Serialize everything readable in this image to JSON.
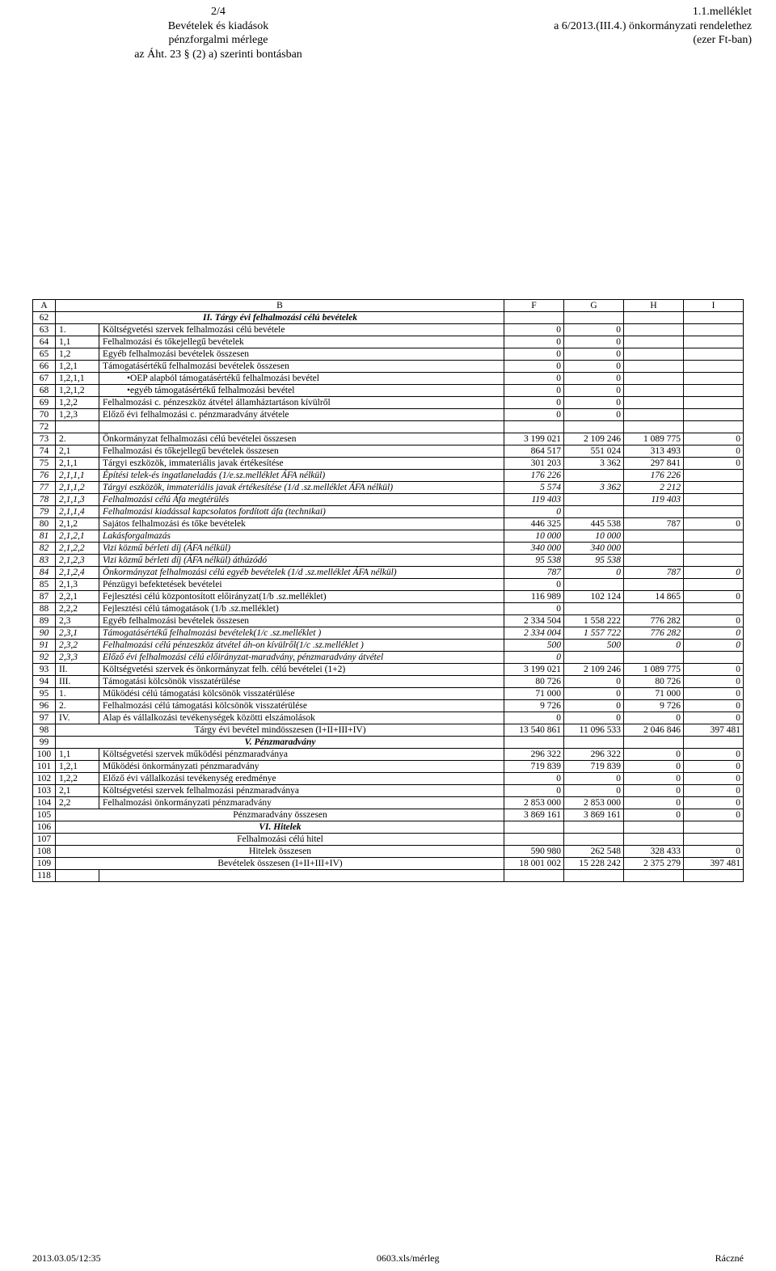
{
  "header_left": [
    "2/4",
    "Bevételek és kiadások",
    "pénzforgalmi mérlege",
    "az Áht. 23 § (2) a) szerinti bontásban"
  ],
  "header_right": [
    "1.1.melléklet",
    "a 6/2013.(III.4.) önkormányzati rendelethez",
    "(ezer Ft-ban)"
  ],
  "col_headers": [
    "A",
    "B",
    "F",
    "G",
    "H",
    "I"
  ],
  "rows": [
    {
      "n": "62",
      "code": "",
      "desc": "II. Tárgy évi felhalmozási  célú bevételek",
      "F": "",
      "G": "",
      "H": "",
      "I": "",
      "style": "section-title",
      "code_merge": true
    },
    {
      "n": "63",
      "code": "1.",
      "desc": "Költségvetési szervek felhalmozási célú bevétele",
      "F": "0",
      "G": "0",
      "H": "",
      "I": ""
    },
    {
      "n": "64",
      "code": "1,1",
      "desc": "Felhalmozási és tőkejellegű bevételek",
      "F": "0",
      "G": "0",
      "H": "",
      "I": ""
    },
    {
      "n": "65",
      "code": "1,2",
      "desc": "Egyéb felhalmozási bevételek összesen",
      "F": "0",
      "G": "0",
      "H": "",
      "I": ""
    },
    {
      "n": "66",
      "code": "1,2,1",
      "desc": "Támogatásértékű felhalmozási bevételek összesen",
      "F": "0",
      "G": "0",
      "H": "",
      "I": ""
    },
    {
      "n": "67",
      "code": "1,2,1,1",
      "desc": "•OEP alapból támogatásértékű felhalmozási bevétel",
      "F": "0",
      "G": "0",
      "H": "",
      "I": "",
      "indent": 2
    },
    {
      "n": "68",
      "code": "1,2,1,2",
      "desc": "•egyéb támogatásértékű felhalmozási bevétel",
      "F": "0",
      "G": "0",
      "H": "",
      "I": "",
      "indent": 2
    },
    {
      "n": "69",
      "code": "1,2,2",
      "desc": "Felhalmozási c. pénzeszköz átvétel államháztartáson kívülről",
      "F": "0",
      "G": "0",
      "H": "",
      "I": ""
    },
    {
      "n": "70",
      "code": "1,2,3",
      "desc": "Előző évi felhalmozási c. pénzmaradvány átvétele",
      "F": "0",
      "G": "0",
      "H": "",
      "I": ""
    },
    {
      "n": "72",
      "code": "",
      "desc": "",
      "F": "",
      "G": "",
      "H": "",
      "I": ""
    },
    {
      "n": "73",
      "code": "2.",
      "desc": "Önkormányzat  felhalmozási célú bevételei összesen",
      "F": "3 199 021",
      "G": "2 109 246",
      "H": "1 089 775",
      "I": "0"
    },
    {
      "n": "74",
      "code": "2,1",
      "desc": "Felhalmozási és tőkejellegű bevételek összesen",
      "F": "864 517",
      "G": "551 024",
      "H": "313 493",
      "I": "0"
    },
    {
      "n": "75",
      "code": "2,1,1",
      "desc": "Tárgyi eszközök, immateriális javak értékesítése",
      "F": "301 203",
      "G": "3 362",
      "H": "297 841",
      "I": "0"
    },
    {
      "n": "76",
      "code": "2,1,1,1",
      "desc": "Építési telek-és ingatlaneladás (1/e.sz.melléklet ÁFA nélkül)",
      "F": "176 226",
      "G": "",
      "H": "176 226",
      "I": "",
      "style": "ital"
    },
    {
      "n": "77",
      "code": "2,1,1,2",
      "desc": "Tárgyi eszközök, immateriális javak értékesítése (1/d .sz.melléklet ÁFA nélkül)",
      "F": "5 574",
      "G": "3 362",
      "H": "2 212",
      "I": "",
      "style": "ital"
    },
    {
      "n": "78",
      "code": "2,1,1,3",
      "desc": "Felhalmozási célú Áfa megtérülés",
      "F": "119 403",
      "G": "",
      "H": "119 403",
      "I": "",
      "style": "ital"
    },
    {
      "n": "79",
      "code": "2,1,1,4",
      "desc": "Felhalmozási kiadással kapcsolatos fordított áfa (technikai)",
      "F": "0",
      "G": "",
      "H": "",
      "I": "",
      "style": "ital"
    },
    {
      "n": "80",
      "code": "2,1,2",
      "desc": "Sajátos felhalmozási és tőke bevételek",
      "F": "446 325",
      "G": "445 538",
      "H": "787",
      "I": "0"
    },
    {
      "n": "81",
      "code": "2,1,2,1",
      "desc": "Lakásforgalmazás",
      "F": "10 000",
      "G": "10 000",
      "H": "",
      "I": "",
      "style": "ital"
    },
    {
      "n": "82",
      "code": "2,1,2,2",
      "desc": "Vizi közmű bérleti díj (ÁFA nélkül)",
      "F": "340 000",
      "G": "340 000",
      "H": "",
      "I": "",
      "style": "ital"
    },
    {
      "n": "83",
      "code": "2,1,2,3",
      "desc": "Vizi közmű bérleti díj (ÁFA nélkül) áthúzódó",
      "F": "95 538",
      "G": "95 538",
      "H": "",
      "I": "",
      "style": "ital"
    },
    {
      "n": "84",
      "code": "2,1,2,4",
      "desc": "Önkormányzat felhalmozási célú egyéb bevételek (1/d .sz.melléklet ÁFA nélkül)",
      "F": "787",
      "G": "0",
      "H": "787",
      "I": "0",
      "style": "ital"
    },
    {
      "n": "85",
      "code": "2,1,3",
      "desc": "Pénzügyi befektetések bevételei",
      "F": "0",
      "G": "",
      "H": "",
      "I": ""
    },
    {
      "n": "87",
      "code": "2,2,1",
      "desc": "Fejlesztési célú központosított előirányzat(1/b .sz.melléklet)",
      "F": "116 989",
      "G": "102 124",
      "H": "14 865",
      "I": "0"
    },
    {
      "n": "88",
      "code": "2,2,2",
      "desc": "Fejlesztési célú támogatások (1/b .sz.melléklet)",
      "F": "0",
      "G": "",
      "H": "",
      "I": ""
    },
    {
      "n": "89",
      "code": "2,3",
      "desc": "Egyéb felhalmozási bevételek összesen",
      "F": "2 334 504",
      "G": "1 558 222",
      "H": "776 282",
      "I": "0"
    },
    {
      "n": "90",
      "code": "2,3,1",
      "desc": "Támogatásértékű felhalmozási bevételek(1/c .sz.melléklet )",
      "F": "2 334 004",
      "G": "1 557 722",
      "H": "776 282",
      "I": "0",
      "style": "ital"
    },
    {
      "n": "91",
      "code": "2,3,2",
      "desc": "Felhalmozási célú pénzeszköz átvétel áh-on kívülről(1/c .sz.melléklet )",
      "F": "500",
      "G": "500",
      "H": "0",
      "I": "0",
      "style": "ital"
    },
    {
      "n": "92",
      "code": "2,3,3",
      "desc": "Előző évi felhalmozási célú előirányzat-maradvány, pénzmaradvány átvétel",
      "F": "0",
      "G": "",
      "H": "",
      "I": "",
      "style": "ital"
    },
    {
      "n": "93",
      "code": "II.",
      "desc": "Költségvetési szervek és önkormányzat felh. célú bevételei (1+2)",
      "F": "3 199 021",
      "G": "2 109 246",
      "H": "1 089 775",
      "I": "0"
    },
    {
      "n": "94",
      "code": "III.",
      "desc": "Támogatási kölcsönök visszatérülése",
      "F": "80 726",
      "G": "0",
      "H": "80 726",
      "I": "0"
    },
    {
      "n": "95",
      "code": "1.",
      "desc": "Működési célú támogatási kölcsönök visszatérülése",
      "F": "71 000",
      "G": "0",
      "H": "71 000",
      "I": "0"
    },
    {
      "n": "96",
      "code": "2.",
      "desc": "Felhalmozási célú támogatási kölcsönök visszatérülése",
      "F": "9 726",
      "G": "0",
      "H": "9 726",
      "I": "0"
    },
    {
      "n": "97",
      "code": "IV.",
      "desc": "Alap és vállalkozási tevékenységek közötti elszámolások",
      "F": "0",
      "G": "0",
      "H": "0",
      "I": "0"
    },
    {
      "n": "98",
      "code": "",
      "desc": "Tárgy évi bevétel mindösszesen (I+II+III+IV)",
      "F": "13 540 861",
      "G": "11 096 533",
      "H": "2 046 846",
      "I": "397 481",
      "desc_center": true,
      "code_merge": true
    },
    {
      "n": "99",
      "code": "",
      "desc": "V. Pénzmaradvány",
      "F": "",
      "G": "",
      "H": "",
      "I": "",
      "style": "section-title",
      "code_merge": true
    },
    {
      "n": "100",
      "code": "1,1",
      "desc": "Költségvetési szervek működési pénzmaradványa",
      "F": "296 322",
      "G": "296 322",
      "H": "0",
      "I": "0"
    },
    {
      "n": "101",
      "code": "1,2,1",
      "desc": "Működési önkormányzati pénzmaradvány",
      "F": "719 839",
      "G": "719 839",
      "H": "0",
      "I": "0"
    },
    {
      "n": "102",
      "code": "1,2,2",
      "desc": "Előző évi vállalkozási tevékenység eredménye",
      "F": "0",
      "G": "0",
      "H": "0",
      "I": "0"
    },
    {
      "n": "103",
      "code": "2,1",
      "desc": "Költségvetési szervek felhalmozási pénzmaradványa",
      "F": "0",
      "G": "0",
      "H": "0",
      "I": "0"
    },
    {
      "n": "104",
      "code": "2,2",
      "desc": "Felhalmozási önkormányzati pénzmaradvány",
      "F": "2 853 000",
      "G": "2 853 000",
      "H": "0",
      "I": "0"
    },
    {
      "n": "105",
      "code": "",
      "desc": "Pénzmaradvány összesen",
      "F": "3 869 161",
      "G": "3 869 161",
      "H": "0",
      "I": "0",
      "desc_center": true,
      "code_merge": true
    },
    {
      "n": "106",
      "code": "",
      "desc": "VI. Hitelek",
      "F": "",
      "G": "",
      "H": "",
      "I": "",
      "style": "section-title",
      "code_merge": true
    },
    {
      "n": "107",
      "code": "",
      "desc": "Felhalmozási célú hitel",
      "F": "",
      "G": "",
      "H": "",
      "I": "",
      "desc_center": true,
      "code_merge": true
    },
    {
      "n": "108",
      "code": "",
      "desc": "Hitelek összesen",
      "F": "590 980",
      "G": "262 548",
      "H": "328 433",
      "I": "0",
      "desc_center": true,
      "code_merge": true
    },
    {
      "n": "109",
      "code": "",
      "desc": "Bevételek összesen (I+II+III+IV)",
      "F": "18 001 002",
      "G": "15 228 242",
      "H": "2 375 279",
      "I": "397 481",
      "desc_center": true,
      "code_merge": true
    },
    {
      "n": "118",
      "code": "",
      "desc": "",
      "F": "",
      "G": "",
      "H": "",
      "I": ""
    }
  ],
  "footer": {
    "left": "2013.03.05/12:35",
    "center": "0603.xls/mérleg",
    "right": "Ráczné"
  }
}
